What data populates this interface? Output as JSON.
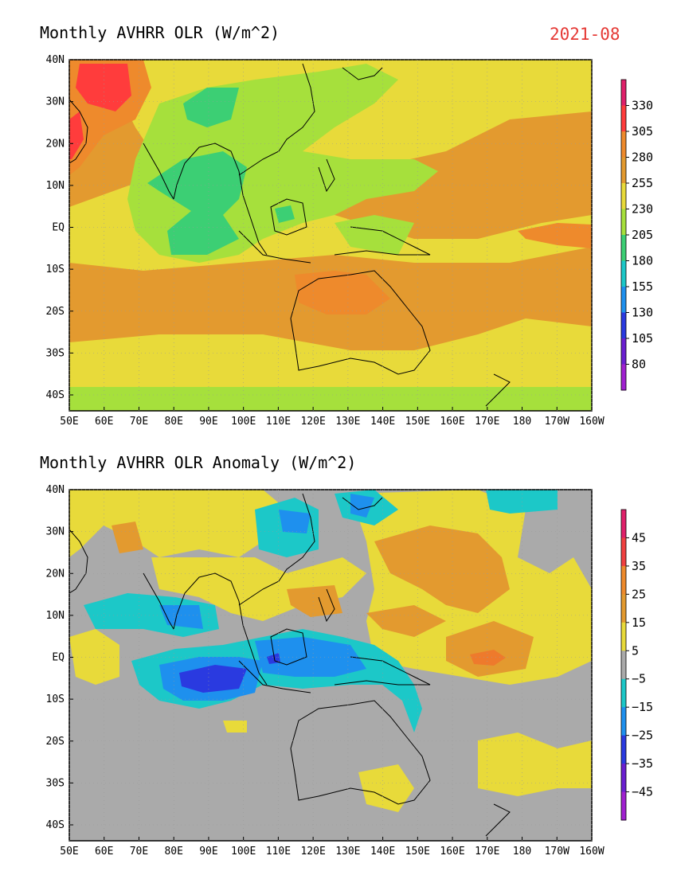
{
  "figure": {
    "date_label": "2021-08"
  },
  "panels": [
    {
      "title": "Monthly AVHRR OLR (W/m^2)",
      "colorbar": {
        "labels": [
          "330",
          "305",
          "280",
          "255",
          "230",
          "205",
          "180",
          "155",
          "130",
          "105",
          "80"
        ],
        "colors": [
          "#e0206a",
          "#ff3c3c",
          "#ee8a2c",
          "#e39a2f",
          "#e8da3a",
          "#a6e03c",
          "#3ccf74",
          "#1cc8c8",
          "#1e90ee",
          "#2a3ae0",
          "#6a1fd0",
          "#a020d0"
        ]
      },
      "field_colors": {
        "background": "#e39a2f",
        "yellow": "#e8da3a",
        "green": "#a6e03c",
        "teal": "#3ccf74",
        "orange": "#ee8a2c",
        "red": "#ff3c3c"
      }
    },
    {
      "title": "Monthly AVHRR OLR Anomaly (W/m^2)",
      "colorbar": {
        "labels": [
          "45",
          "35",
          "25",
          "15",
          "5",
          "−5",
          "−15",
          "−25",
          "−35",
          "−45"
        ],
        "colors": [
          "#e0206a",
          "#f04040",
          "#ee8a2c",
          "#e39a2f",
          "#e8da3a",
          "#aaaaaa",
          "#1cc8c8",
          "#1e90ee",
          "#2a3ae0",
          "#6a1fd0",
          "#a020d0"
        ]
      },
      "field_colors": {
        "background": "#aaaaaa",
        "yellow": "#e8da3a",
        "orange": "#e39a2f",
        "deep_orange": "#ee7a2c",
        "cyan": "#1cc8c8",
        "blue": "#1e90ee",
        "dark_blue": "#2a3ae0"
      }
    }
  ],
  "axes": {
    "x_labels": [
      "50E",
      "60E",
      "70E",
      "80E",
      "90E",
      "100E",
      "110E",
      "120E",
      "130E",
      "140E",
      "150E",
      "160E",
      "170E",
      "180",
      "170W",
      "160W"
    ],
    "y_labels": [
      "40N",
      "30N",
      "20N",
      "10N",
      "EQ",
      "10S",
      "20S",
      "30S",
      "40S"
    ]
  }
}
